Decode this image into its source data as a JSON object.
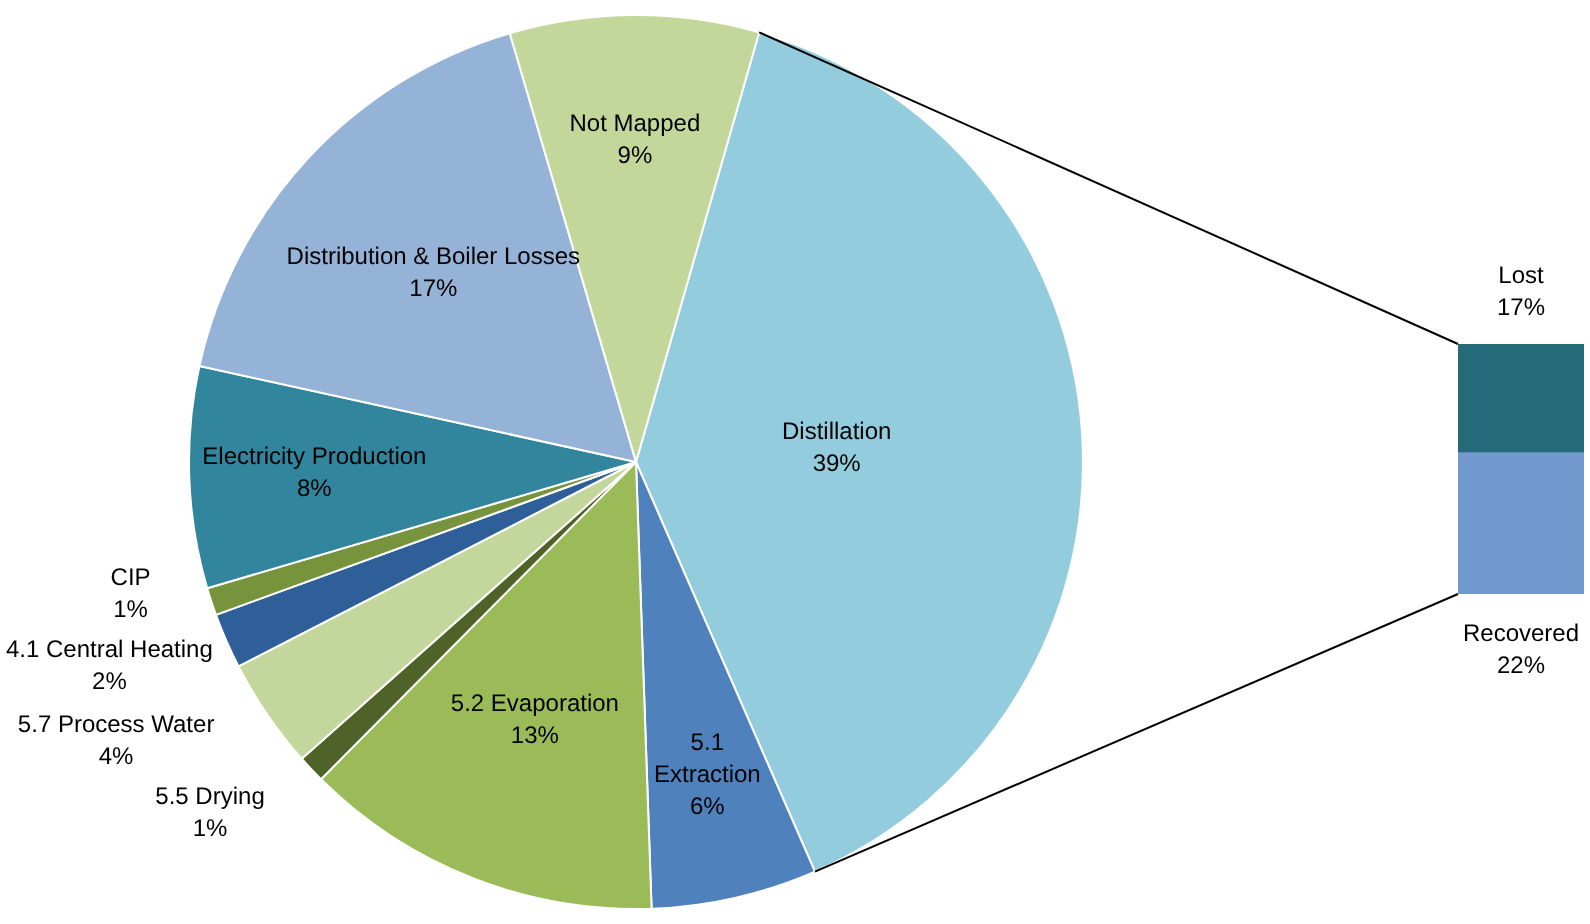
{
  "chart_data": [
    {
      "type": "pie",
      "categories": [
        "Distillation",
        "5.1\nExtraction",
        "5.2 Evaporation",
        "5.5 Drying",
        "5.7 Process Water",
        "4.1 Central Heating",
        "CIP",
        "Electricity Production",
        "Distribution & Boiler Losses",
        "Not Mapped"
      ],
      "values": [
        39,
        6,
        13,
        1,
        4,
        2,
        1,
        8,
        17,
        9
      ],
      "colors": [
        "#93cddd",
        "#4f81bd",
        "#9bbb59",
        "#4f6228",
        "#c3d69b",
        "#2f5f98",
        "#77933c",
        "#31859c",
        "#95b3d7",
        "#c4d79b"
      ],
      "value_labels": [
        "39%",
        "6%",
        "13%",
        "1%",
        "4%",
        "2%",
        "1%",
        "8%",
        "17%",
        "9%"
      ]
    },
    {
      "type": "bar",
      "stacked": true,
      "categories": [
        null
      ],
      "series": [
        {
          "name": "Recovered",
          "color": "#7199cd",
          "values": [
            22
          ],
          "value_labels": [
            "22%"
          ]
        },
        {
          "name": "Lost",
          "color": "#246a78",
          "values": [
            17
          ],
          "value_labels": [
            "17%"
          ]
        }
      ],
      "ylim": [
        0,
        39
      ],
      "tick_labels": false
    }
  ]
}
